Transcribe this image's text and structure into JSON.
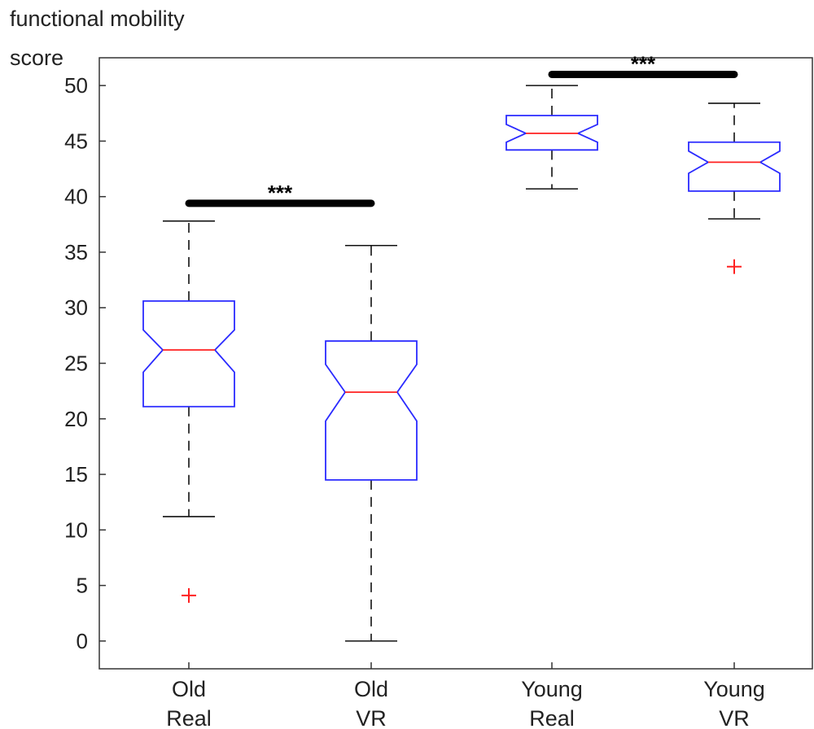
{
  "chart_data": {
    "type": "boxplot",
    "ylabel_lines": [
      "functional mobility",
      "score"
    ],
    "ylim": [
      -2.5,
      52.5
    ],
    "yticks": [
      0,
      5,
      10,
      15,
      20,
      25,
      30,
      35,
      40,
      45,
      50
    ],
    "categories": [
      {
        "lines": [
          "Old",
          "Real"
        ]
      },
      {
        "lines": [
          "Old",
          "VR"
        ]
      },
      {
        "lines": [
          "Young",
          "Real"
        ]
      },
      {
        "lines": [
          "Young",
          "VR"
        ]
      }
    ],
    "boxes": [
      {
        "whisker_low": 11.2,
        "q1": 21.1,
        "median": 26.2,
        "q3": 30.6,
        "whisker_high": 37.8,
        "notch_low": 24.2,
        "notch_high": 28.0,
        "outliers": [
          4.1
        ]
      },
      {
        "whisker_low": 0,
        "q1": 14.5,
        "median": 22.4,
        "q3": 27.0,
        "whisker_high": 35.6,
        "notch_low": 19.8,
        "notch_high": 24.9,
        "outliers": []
      },
      {
        "whisker_low": 40.7,
        "q1": 44.2,
        "median": 45.7,
        "q3": 47.3,
        "whisker_high": 50.0,
        "notch_low": 44.9,
        "notch_high": 46.5,
        "outliers": []
      },
      {
        "whisker_low": 38.0,
        "q1": 40.5,
        "median": 43.1,
        "q3": 44.9,
        "whisker_high": 48.4,
        "notch_low": 42.1,
        "notch_high": 44.1,
        "outliers": [
          33.7
        ]
      }
    ],
    "significance": [
      {
        "from": 0,
        "to": 1,
        "y": 39.4,
        "label": "***"
      },
      {
        "from": 2,
        "to": 3,
        "y": 51.0,
        "label": "***"
      }
    ],
    "colors": {
      "box": "#2a2aff",
      "median": "#ff2020",
      "whisker": "#111111",
      "outlier": "#ff2020",
      "bar": "#000000"
    }
  }
}
